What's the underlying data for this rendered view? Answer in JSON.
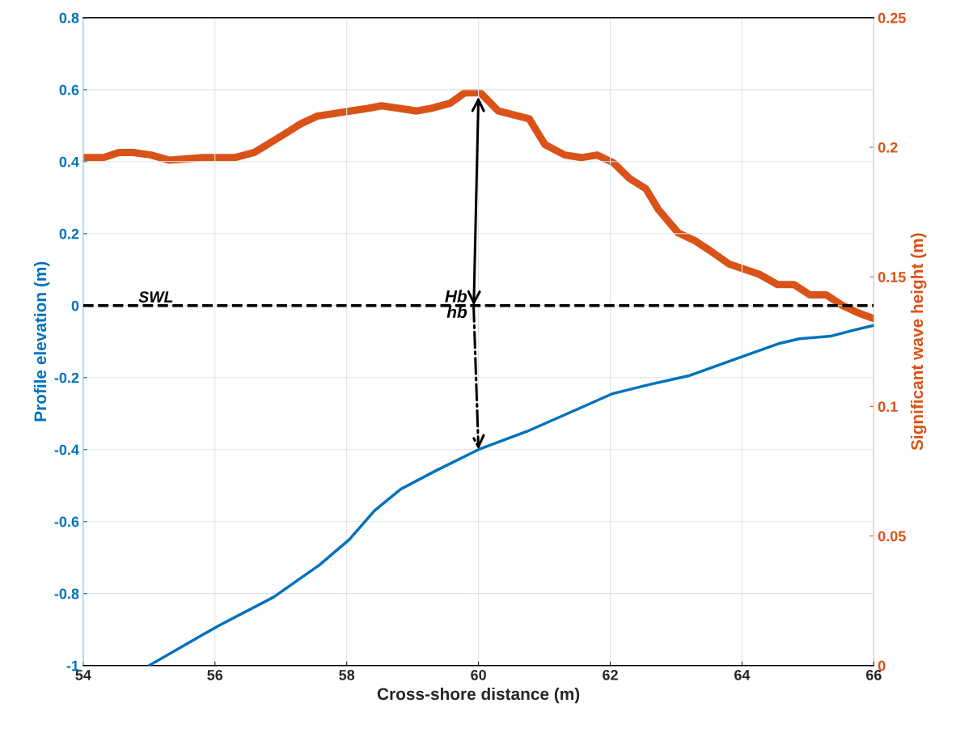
{
  "chart_data": {
    "type": "line",
    "xlabel": "Cross-shore distance (m)",
    "ylabel": "Profile elevation (m)",
    "y2label": "Significant wave height (m)",
    "xlim": [
      54,
      66
    ],
    "xticks": [
      54,
      56,
      58,
      60,
      62,
      64,
      66
    ],
    "ylim": [
      -1,
      0.8
    ],
    "yticks": [
      -1,
      -0.8,
      -0.6,
      -0.4,
      -0.2,
      0,
      0.2,
      0.4,
      0.6,
      0.8
    ],
    "y2lim": [
      0,
      0.25
    ],
    "y2ticks": [
      0,
      0.05,
      0.1,
      0.15,
      0.2,
      0.25
    ],
    "grid": true,
    "line_style": "solid",
    "series": [
      {
        "color": "#0072bd",
        "x": [
          55.0,
          56.05,
          56.89,
          57.59,
          58.04,
          58.42,
          58.82,
          59.34,
          60.0,
          60.73,
          61.35,
          62.03,
          62.58,
          63.19,
          63.95,
          64.57,
          64.87,
          65.34,
          65.72,
          66.0
        ],
        "values": [
          -1.0,
          -0.89,
          -0.81,
          -0.72,
          -0.65,
          -0.57,
          -0.51,
          -0.46,
          -0.4,
          -0.35,
          -0.3,
          -0.245,
          -0.22,
          -0.195,
          -0.145,
          -0.105,
          -0.092,
          -0.085,
          -0.067,
          -0.055
        ]
      },
      {
        "color": "#d95319",
        "axis": "y2",
        "x": [
          54.0,
          54.31,
          54.54,
          54.76,
          55.03,
          55.31,
          55.82,
          56.3,
          56.6,
          57.05,
          57.3,
          57.55,
          57.81,
          58.05,
          58.32,
          58.53,
          58.8,
          59.06,
          59.28,
          59.57,
          59.79,
          60.03,
          60.3,
          60.77,
          61.01,
          61.31,
          61.56,
          61.8,
          62.05,
          62.29,
          62.54,
          62.73,
          63.03,
          63.28,
          63.52,
          63.8,
          64.26,
          64.54,
          64.79,
          65.03,
          65.28,
          65.52,
          65.77,
          65.99
        ],
        "values": [
          0.196,
          0.196,
          0.198,
          0.198,
          0.197,
          0.195,
          0.196,
          0.196,
          0.198,
          0.205,
          0.209,
          0.212,
          0.213,
          0.214,
          0.215,
          0.216,
          0.215,
          0.214,
          0.215,
          0.217,
          0.221,
          0.221,
          0.214,
          0.211,
          0.201,
          0.197,
          0.196,
          0.197,
          0.194,
          0.188,
          0.184,
          0.176,
          0.167,
          0.164,
          0.16,
          0.155,
          0.151,
          0.147,
          0.147,
          0.143,
          0.143,
          0.139,
          0.136,
          0.134
        ]
      }
    ],
    "ref_lines": [
      {
        "axis": "y",
        "value": 0,
        "label": "SWL",
        "color": "#000000",
        "line_style": "dashed"
      }
    ],
    "annotations": [
      {
        "text": "Hb",
        "x": 60,
        "y": 0.58
      },
      {
        "text": "hb",
        "x": 60,
        "y": -0.4
      }
    ]
  }
}
